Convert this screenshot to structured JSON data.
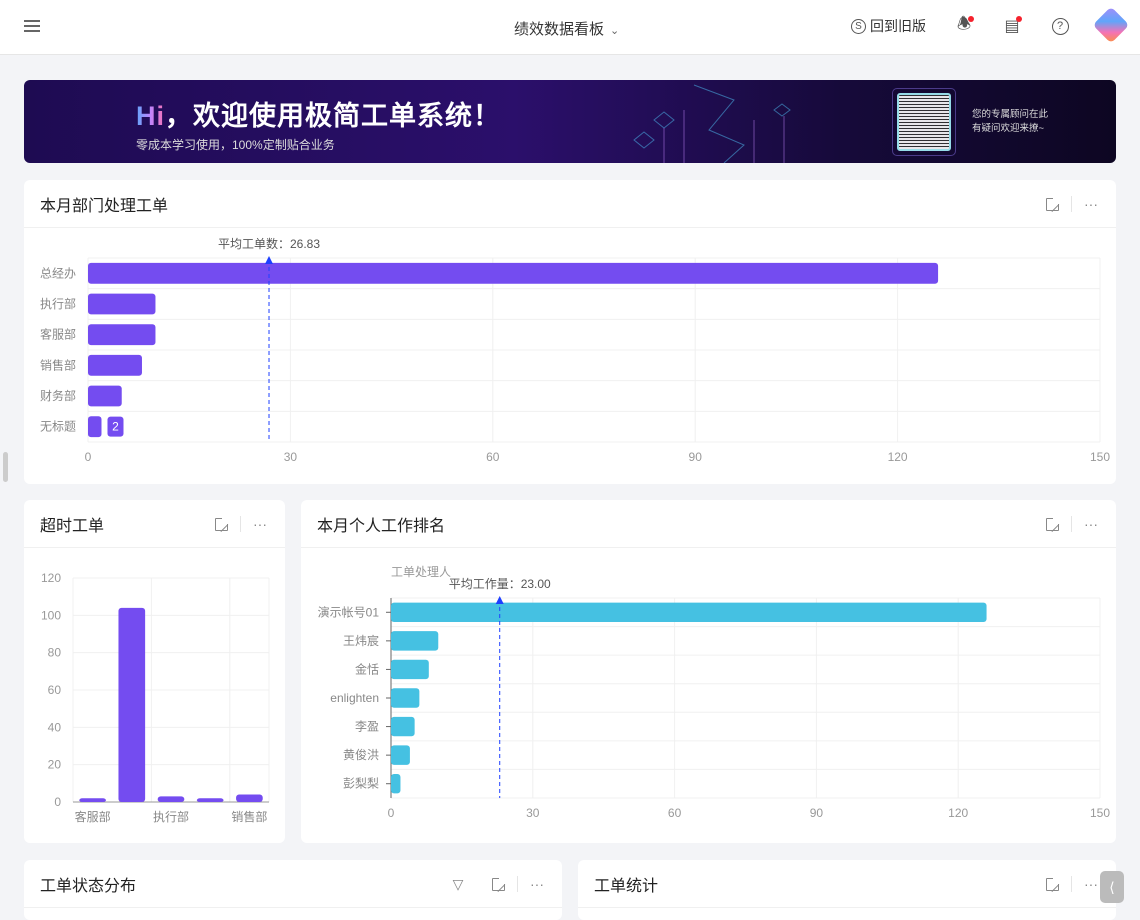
{
  "header": {
    "title": "绩效数据看板",
    "old_version": "回到旧版"
  },
  "banner": {
    "hi": "Hi",
    "headline": "，欢迎使用极简工单系统！",
    "subtitle": "零成本学习使用，100%定制贴合业务",
    "advisor_line1": "您的专属顾问在此",
    "advisor_line2": "有疑问欢迎来撩~"
  },
  "colors": {
    "purple": "#744cf0",
    "cyan": "#45c1e2",
    "avg_line": "#1e40ff",
    "background": "#f3f4f7"
  },
  "cards": {
    "dept": {
      "title": "本月部门处理工单"
    },
    "overdue": {
      "title": "超时工单"
    },
    "personal": {
      "title": "本月个人工作排名"
    },
    "status": {
      "title": "工单状态分布"
    },
    "stats": {
      "title": "工单统计"
    }
  },
  "chart_data": [
    {
      "type": "bar",
      "orientation": "horizontal",
      "categories": [
        "总经办",
        "执行部",
        "客服部",
        "销售部",
        "财务部",
        "无标题"
      ],
      "values": [
        126,
        10,
        10,
        8,
        5,
        2
      ],
      "xlim": [
        0,
        150
      ],
      "xticks": [
        0,
        30,
        60,
        90,
        120,
        150
      ],
      "avg_label": "平均工单数：26.83",
      "avg": 26.83,
      "data_label": "2",
      "grid": true
    },
    {
      "type": "bar",
      "orientation": "vertical",
      "categories": [
        "客服部",
        "",
        "执行部",
        "",
        "销售部"
      ],
      "values": [
        2,
        104,
        3,
        2,
        4
      ],
      "ylim": [
        0,
        120
      ],
      "yticks": [
        0,
        20,
        40,
        60,
        80,
        100,
        120
      ],
      "grid": true
    },
    {
      "type": "bar",
      "orientation": "horizontal",
      "ylabel": "工单处理人",
      "categories": [
        "演示帐号01",
        "王炜宸",
        "金恬",
        "enlighten",
        "李盈",
        "黄俊洪",
        "彭梨梨"
      ],
      "values": [
        126,
        10,
        8,
        6,
        5,
        4,
        2
      ],
      "xlim": [
        0,
        150
      ],
      "xticks": [
        0,
        30,
        60,
        90,
        120,
        150
      ],
      "avg_label": "平均工作量：23.00",
      "avg": 23,
      "grid": true
    }
  ]
}
